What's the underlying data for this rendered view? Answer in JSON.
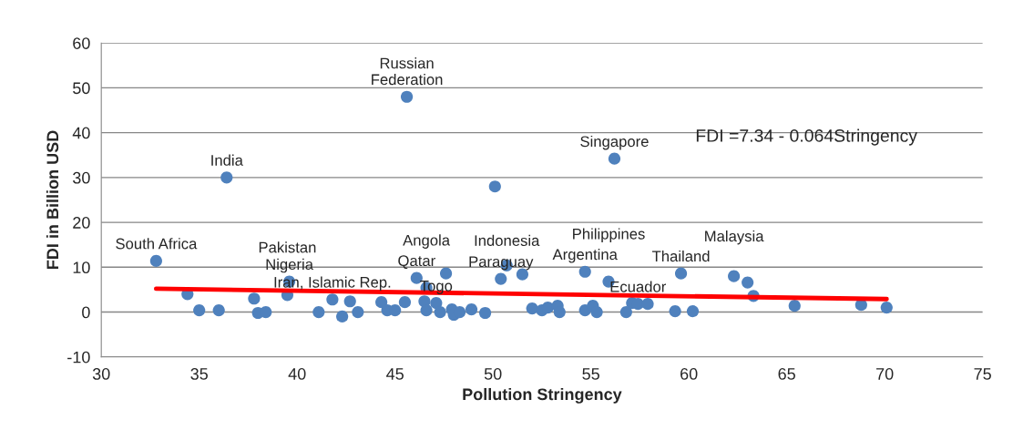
{
  "chart_data": {
    "type": "scatter",
    "xlabel": "Pollution Stringency",
    "ylabel": "FDI in Billion USD",
    "xlim": [
      30,
      75
    ],
    "xticks": [
      30,
      35,
      40,
      45,
      50,
      55,
      60,
      65,
      70,
      75
    ],
    "ylim": [
      -10,
      60
    ],
    "yticks": [
      -10,
      0,
      10,
      20,
      30,
      40,
      50,
      60
    ],
    "grid": "y",
    "marker": "circle",
    "legend": false,
    "series": [
      {
        "color": "#4f81bd",
        "x": [
          32.8,
          34.4,
          35.0,
          36.0,
          36.4,
          37.8,
          38.0,
          38.4,
          39.5,
          39.6,
          41.1,
          41.8,
          42.3,
          42.7,
          43.1,
          44.3,
          44.6,
          45.0,
          45.5,
          45.6,
          46.1,
          46.5,
          46.6,
          46.6,
          47.1,
          47.6,
          47.3,
          47.9,
          48.0,
          48.3,
          48.9,
          49.6,
          50.1,
          50.4,
          50.7,
          51.5,
          52.0,
          52.5,
          52.8,
          53.3,
          53.4,
          54.7,
          54.7,
          55.1,
          55.3,
          55.9,
          56.2,
          56.8,
          57.1,
          57.4,
          57.9,
          59.3,
          59.6,
          60.2,
          62.3,
          63.0,
          63.3,
          65.4,
          68.8,
          70.1
        ],
        "values": [
          11.4,
          4.0,
          0.4,
          0.4,
          30,
          3.0,
          -0.2,
          0,
          3.8,
          6.8,
          0,
          2.8,
          -1.0,
          2.4,
          0,
          2.2,
          0.4,
          0.4,
          2.2,
          48,
          7.6,
          2.4,
          0.4,
          5.4,
          2.0,
          8.6,
          0,
          0.6,
          -0.6,
          0,
          0.6,
          -0.2,
          28,
          7.4,
          10.4,
          8.4,
          0.8,
          0.4,
          1.0,
          1.4,
          0,
          0.4,
          9.0,
          1.4,
          0,
          6.8,
          34.2,
          0,
          2.0,
          1.8,
          1.8,
          0.2,
          8.6,
          0.2,
          8.0,
          6.6,
          3.6,
          1.4,
          1.6,
          1.0
        ]
      },
      {
        "type": "line",
        "color": "#ff0000",
        "x": [
          32.8,
          70.1
        ],
        "values": [
          5.2,
          2.9
        ],
        "marker": "none"
      }
    ],
    "annotations": [
      {
        "text": "South Africa",
        "x": 32.8,
        "y": 11.4
      },
      {
        "text": "India",
        "x": 36.4,
        "y": 30
      },
      {
        "text": "Russian\nFederation",
        "x": 45.6,
        "y": 48
      },
      {
        "text": "Singapore",
        "x": 56.2,
        "y": 34.2
      },
      {
        "text": "Nigeria",
        "x": 39.6,
        "y": 6.8
      },
      {
        "text": "Pakistan",
        "x": 39.5,
        "y": 3.8
      },
      {
        "text": "Iran, Islamic Rep.",
        "x": 41.8,
        "y": 2.8
      },
      {
        "text": "Qatar",
        "x": 46.1,
        "y": 7.6
      },
      {
        "text": "Angola",
        "x": 46.6,
        "y": 5.4
      },
      {
        "text": "Togo",
        "x": 47.1,
        "y": 2.0
      },
      {
        "text": "Paraguay",
        "x": 50.4,
        "y": 7.4
      },
      {
        "text": "Indonesia",
        "x": 50.7,
        "y": 10.4
      },
      {
        "text": "Argentina",
        "x": 54.7,
        "y": 9.0
      },
      {
        "text": "Philippines",
        "x": 55.9,
        "y": 6.8
      },
      {
        "text": "Ecuador",
        "x": 57.4,
        "y": 1.8
      },
      {
        "text": "Thailand",
        "x": 59.6,
        "y": 8.6
      },
      {
        "text": "Malaysia",
        "x": 62.3,
        "y": 8.0
      },
      "FDI =7.34 - 0.064Stringency"
    ]
  }
}
